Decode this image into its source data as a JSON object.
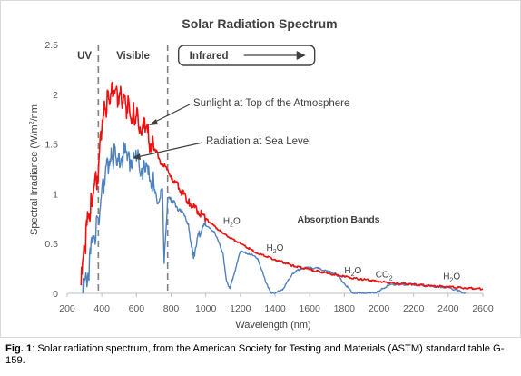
{
  "chart_data": {
    "type": "line",
    "title": "Solar Radiation Spectrum",
    "xlabel": "Wavelength (nm)",
    "ylabel_main": "Spectral Irradiance (W/m",
    "ylabel_sup": "2",
    "ylabel_tail": "/nm",
    "xlim": [
      200,
      2600
    ],
    "ylim": [
      0,
      2.5
    ],
    "x_ticks": [
      200,
      400,
      600,
      800,
      1000,
      1200,
      1400,
      1600,
      1800,
      2000,
      2200,
      2400,
      2600
    ],
    "y_ticks": [
      0,
      0.5,
      1,
      1.5,
      2,
      2.5
    ],
    "y_tick_labels": [
      "0",
      "0.5",
      "1",
      "1.5",
      "2",
      "2.5"
    ],
    "grid": false,
    "series": [
      {
        "name": "Sunlight at Top of the Atmosphere",
        "color": "#ee1111",
        "x": [
          280,
          300,
          320,
          340,
          360,
          380,
          400,
          420,
          440,
          460,
          480,
          500,
          520,
          540,
          560,
          580,
          600,
          650,
          700,
          750,
          800,
          900,
          1000,
          1100,
          1200,
          1300,
          1400,
          1500,
          1600,
          1700,
          1800,
          1900,
          2000,
          2100,
          2200,
          2300,
          2400,
          2500,
          2600
        ],
        "y": [
          0.08,
          0.45,
          0.75,
          0.95,
          1.15,
          1.2,
          1.65,
          1.85,
          1.95,
          2.12,
          2.05,
          1.98,
          1.9,
          1.88,
          1.85,
          1.82,
          1.78,
          1.62,
          1.45,
          1.3,
          1.18,
          0.92,
          0.75,
          0.6,
          0.5,
          0.4,
          0.34,
          0.28,
          0.24,
          0.2,
          0.17,
          0.14,
          0.12,
          0.1,
          0.09,
          0.075,
          0.065,
          0.055,
          0.045
        ]
      },
      {
        "name": "Radiation at Sea Level",
        "color": "#4f81bd",
        "x": [
          290,
          320,
          350,
          380,
          400,
          420,
          440,
          460,
          480,
          500,
          550,
          600,
          650,
          700,
          720,
          750,
          760,
          780,
          800,
          850,
          900,
          930,
          950,
          980,
          1000,
          1050,
          1100,
          1120,
          1140,
          1180,
          1200,
          1250,
          1300,
          1350,
          1380,
          1400,
          1450,
          1500,
          1550,
          1600,
          1650,
          1700,
          1750,
          1800,
          1850,
          1900,
          1950,
          2000,
          2050,
          2100,
          2200,
          2300,
          2400,
          2450,
          2500
        ],
        "y": [
          0.0,
          0.2,
          0.55,
          0.75,
          1.05,
          1.2,
          1.25,
          1.35,
          1.38,
          1.4,
          1.38,
          1.33,
          1.22,
          1.1,
          0.9,
          1.05,
          0.3,
          0.95,
          0.92,
          0.85,
          0.7,
          0.35,
          0.55,
          0.65,
          0.68,
          0.62,
          0.4,
          0.12,
          0.05,
          0.3,
          0.42,
          0.4,
          0.35,
          0.1,
          0.0,
          0.0,
          0.05,
          0.2,
          0.25,
          0.26,
          0.25,
          0.22,
          0.2,
          0.1,
          0.0,
          0.0,
          0.0,
          0.02,
          0.08,
          0.09,
          0.09,
          0.07,
          0.06,
          0.03,
          0.0
        ]
      }
    ],
    "region_labels": [
      {
        "text": "UV",
        "x": 300
      },
      {
        "text": "Visible",
        "x": 580
      }
    ],
    "region_dividers": [
      380,
      780
    ],
    "infrared_label": "Infrared",
    "series_annotations": [
      {
        "text": "Sunlight at Top of the Atmosphere"
      },
      {
        "text": "Radiation at Sea Level"
      }
    ],
    "absorption_label": "Absorption Bands",
    "band_labels": [
      {
        "pre": "H",
        "sub": "2",
        "post": "O",
        "x": 1150,
        "y": 0.7
      },
      {
        "pre": "H",
        "sub": "2",
        "post": "O",
        "x": 1400,
        "y": 0.43
      },
      {
        "pre": "H",
        "sub": "2",
        "post": "O",
        "x": 1850,
        "y": 0.2
      },
      {
        "pre": "CO",
        "sub": "2",
        "post": "",
        "x": 2030,
        "y": 0.16
      },
      {
        "pre": "H",
        "sub": "2",
        "post": "O",
        "x": 2420,
        "y": 0.14
      }
    ]
  },
  "caption": {
    "prefix": "Fig. 1",
    "text": ": Solar radiation spectrum, from the American Society for Testing and Materials (ASTM) standard table G-159."
  }
}
